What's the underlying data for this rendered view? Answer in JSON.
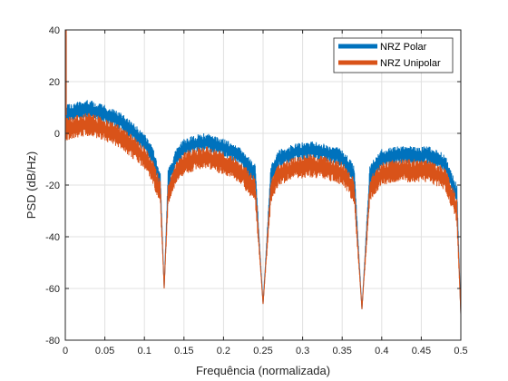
{
  "chart_data": {
    "type": "line",
    "title": "",
    "xlabel": "Frequência (normalizada)",
    "ylabel": "PSD (dB/Hz)",
    "xlim": [
      0,
      0.5
    ],
    "ylim": [
      -80,
      40
    ],
    "xticks": [
      0,
      0.05,
      0.1,
      0.15,
      0.2,
      0.25,
      0.3,
      0.35,
      0.4,
      0.45,
      0.5
    ],
    "yticks": [
      -80,
      -60,
      -40,
      -20,
      0,
      20,
      40
    ],
    "xtick_labels": [
      "0",
      "0.05",
      "0.1",
      "0.15",
      "0.2",
      "0.25",
      "0.3",
      "0.35",
      "0.4",
      "0.45",
      "0.5"
    ],
    "ytick_labels": [
      "-80",
      "-60",
      "-40",
      "-20",
      "0",
      "20",
      "40"
    ],
    "grid": true,
    "legend_position": "top-right",
    "series": [
      {
        "name": "NRZ Polar",
        "color": "#0072BD",
        "spike_at_zero": 38,
        "upper_envelope": [
          [
            0,
            12
          ],
          [
            0.01,
            12
          ],
          [
            0.03,
            13
          ],
          [
            0.05,
            11
          ],
          [
            0.07,
            8
          ],
          [
            0.09,
            3
          ],
          [
            0.1,
            0
          ],
          [
            0.11,
            -5
          ],
          [
            0.12,
            -14
          ],
          [
            0.125,
            -60
          ],
          [
            0.13,
            -14
          ],
          [
            0.14,
            -6
          ],
          [
            0.15,
            -2
          ],
          [
            0.17,
            0
          ],
          [
            0.18,
            0
          ],
          [
            0.2,
            -2
          ],
          [
            0.22,
            -5
          ],
          [
            0.24,
            -12
          ],
          [
            0.25,
            -66
          ],
          [
            0.26,
            -12
          ],
          [
            0.27,
            -6
          ],
          [
            0.29,
            -4
          ],
          [
            0.31,
            -3
          ],
          [
            0.33,
            -4
          ],
          [
            0.35,
            -6
          ],
          [
            0.365,
            -12
          ],
          [
            0.375,
            -68
          ],
          [
            0.385,
            -12
          ],
          [
            0.4,
            -6
          ],
          [
            0.42,
            -5
          ],
          [
            0.44,
            -5
          ],
          [
            0.46,
            -5
          ],
          [
            0.48,
            -8
          ],
          [
            0.495,
            -20
          ],
          [
            0.5,
            -70
          ]
        ],
        "lower_envelope": [
          [
            0,
            4
          ],
          [
            0.01,
            5
          ],
          [
            0.03,
            6
          ],
          [
            0.05,
            4
          ],
          [
            0.07,
            1
          ],
          [
            0.09,
            -4
          ],
          [
            0.1,
            -7
          ],
          [
            0.11,
            -12
          ],
          [
            0.12,
            -22
          ],
          [
            0.125,
            -60
          ],
          [
            0.13,
            -22
          ],
          [
            0.14,
            -13
          ],
          [
            0.15,
            -9
          ],
          [
            0.17,
            -7
          ],
          [
            0.18,
            -7
          ],
          [
            0.2,
            -9
          ],
          [
            0.22,
            -12
          ],
          [
            0.24,
            -20
          ],
          [
            0.25,
            -66
          ],
          [
            0.26,
            -20
          ],
          [
            0.27,
            -13
          ],
          [
            0.29,
            -11
          ],
          [
            0.31,
            -10
          ],
          [
            0.33,
            -11
          ],
          [
            0.35,
            -13
          ],
          [
            0.365,
            -20
          ],
          [
            0.375,
            -68
          ],
          [
            0.385,
            -20
          ],
          [
            0.4,
            -13
          ],
          [
            0.42,
            -12
          ],
          [
            0.44,
            -12
          ],
          [
            0.46,
            -12
          ],
          [
            0.48,
            -15
          ],
          [
            0.495,
            -28
          ],
          [
            0.5,
            -70
          ]
        ]
      },
      {
        "name": "NRZ Unipolar",
        "color": "#D95319",
        "spike_at_zero": 40,
        "upper_envelope": [
          [
            0,
            7
          ],
          [
            0.01,
            7
          ],
          [
            0.03,
            8
          ],
          [
            0.05,
            6
          ],
          [
            0.07,
            3
          ],
          [
            0.09,
            -2
          ],
          [
            0.1,
            -5
          ],
          [
            0.11,
            -10
          ],
          [
            0.12,
            -18
          ],
          [
            0.125,
            -60
          ],
          [
            0.13,
            -18
          ],
          [
            0.14,
            -11
          ],
          [
            0.15,
            -7
          ],
          [
            0.17,
            -5
          ],
          [
            0.18,
            -5
          ],
          [
            0.2,
            -7
          ],
          [
            0.22,
            -10
          ],
          [
            0.24,
            -17
          ],
          [
            0.25,
            -66
          ],
          [
            0.26,
            -17
          ],
          [
            0.27,
            -11
          ],
          [
            0.29,
            -9
          ],
          [
            0.31,
            -8
          ],
          [
            0.33,
            -9
          ],
          [
            0.35,
            -11
          ],
          [
            0.365,
            -17
          ],
          [
            0.375,
            -68
          ],
          [
            0.385,
            -17
          ],
          [
            0.4,
            -11
          ],
          [
            0.42,
            -10
          ],
          [
            0.44,
            -10
          ],
          [
            0.46,
            -10
          ],
          [
            0.48,
            -13
          ],
          [
            0.495,
            -25
          ],
          [
            0.5,
            -70
          ]
        ],
        "lower_envelope": [
          [
            0,
            -3
          ],
          [
            0.01,
            -2
          ],
          [
            0.03,
            -1
          ],
          [
            0.05,
            -3
          ],
          [
            0.07,
            -6
          ],
          [
            0.09,
            -11
          ],
          [
            0.1,
            -14
          ],
          [
            0.11,
            -19
          ],
          [
            0.12,
            -28
          ],
          [
            0.125,
            -60
          ],
          [
            0.13,
            -28
          ],
          [
            0.14,
            -20
          ],
          [
            0.15,
            -16
          ],
          [
            0.17,
            -14
          ],
          [
            0.18,
            -14
          ],
          [
            0.2,
            -16
          ],
          [
            0.22,
            -19
          ],
          [
            0.24,
            -27
          ],
          [
            0.25,
            -66
          ],
          [
            0.26,
            -27
          ],
          [
            0.27,
            -20
          ],
          [
            0.29,
            -18
          ],
          [
            0.31,
            -17
          ],
          [
            0.33,
            -18
          ],
          [
            0.35,
            -20
          ],
          [
            0.365,
            -27
          ],
          [
            0.375,
            -68
          ],
          [
            0.385,
            -27
          ],
          [
            0.4,
            -20
          ],
          [
            0.42,
            -19
          ],
          [
            0.44,
            -19
          ],
          [
            0.46,
            -19
          ],
          [
            0.48,
            -22
          ],
          [
            0.495,
            -35
          ],
          [
            0.5,
            -70
          ]
        ]
      }
    ]
  }
}
